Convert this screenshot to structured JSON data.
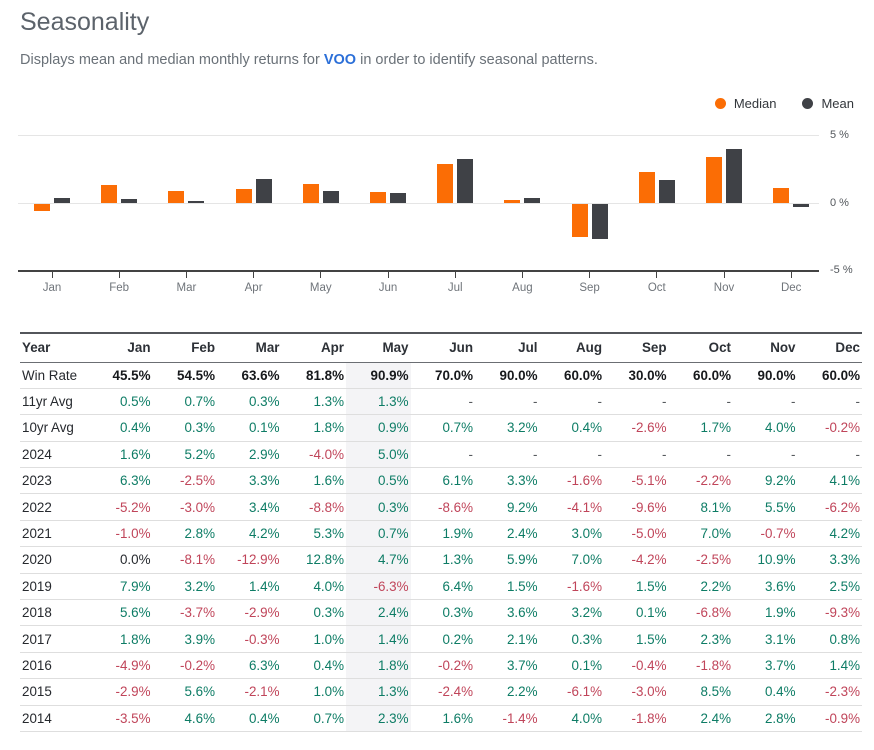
{
  "page": {
    "title": "Seasonality",
    "subtitle_prefix": "Displays mean and median monthly returns for ",
    "ticker": "VOO",
    "subtitle_suffix": " in order to identify seasonal patterns."
  },
  "legend": [
    {
      "label": "Median",
      "color": "#fb6d05"
    },
    {
      "label": "Mean",
      "color": "#3f4146"
    }
  ],
  "chart_data": {
    "type": "bar",
    "title": "",
    "categories": [
      "Jan",
      "Feb",
      "Mar",
      "Apr",
      "May",
      "Jun",
      "Jul",
      "Aug",
      "Sep",
      "Oct",
      "Nov",
      "Dec"
    ],
    "series": [
      {
        "name": "Median",
        "color": "#fb6d05",
        "values": [
          -0.5,
          1.3,
          0.9,
          1.0,
          1.4,
          0.8,
          2.9,
          0.2,
          -2.4,
          2.3,
          3.4,
          1.1
        ]
      },
      {
        "name": "Mean",
        "color": "#3f4146",
        "values": [
          0.4,
          0.3,
          0.1,
          1.8,
          0.9,
          0.7,
          3.2,
          0.4,
          -2.6,
          1.7,
          4.0,
          -0.2
        ]
      }
    ],
    "xlabel": "",
    "ylabel": "",
    "ylim": [
      -5,
      5
    ],
    "ytick_labels": [
      "5 %",
      "0 %",
      "-5 %"
    ],
    "grid": "horizontal",
    "legend_position": "top-right"
  },
  "table": {
    "highlighted_column": "May",
    "columns": [
      "Year",
      "Jan",
      "Feb",
      "Mar",
      "Apr",
      "May",
      "Jun",
      "Jul",
      "Aug",
      "Sep",
      "Oct",
      "Nov",
      "Dec"
    ],
    "rows": [
      {
        "label": "Win Rate",
        "bold": true,
        "values": [
          "45.5%",
          "54.5%",
          "63.6%",
          "81.8%",
          "90.9%",
          "70.0%",
          "90.0%",
          "60.0%",
          "30.0%",
          "60.0%",
          "90.0%",
          "60.0%"
        ]
      },
      {
        "label": "11yr Avg",
        "values": [
          "0.5%",
          "0.7%",
          "0.3%",
          "1.3%",
          "1.3%",
          "-",
          "-",
          "-",
          "-",
          "-",
          "-",
          "-"
        ]
      },
      {
        "label": "10yr Avg",
        "values": [
          "0.4%",
          "0.3%",
          "0.1%",
          "1.8%",
          "0.9%",
          "0.7%",
          "3.2%",
          "0.4%",
          "-2.6%",
          "1.7%",
          "4.0%",
          "-0.2%"
        ]
      },
      {
        "label": "2024",
        "values": [
          "1.6%",
          "5.2%",
          "2.9%",
          "-4.0%",
          "5.0%",
          "-",
          "-",
          "-",
          "-",
          "-",
          "-",
          "-"
        ]
      },
      {
        "label": "2023",
        "values": [
          "6.3%",
          "-2.5%",
          "3.3%",
          "1.6%",
          "0.5%",
          "6.1%",
          "3.3%",
          "-1.6%",
          "-5.1%",
          "-2.2%",
          "9.2%",
          "4.1%"
        ]
      },
      {
        "label": "2022",
        "values": [
          "-5.2%",
          "-3.0%",
          "3.4%",
          "-8.8%",
          "0.3%",
          "-8.6%",
          "9.2%",
          "-4.1%",
          "-9.6%",
          "8.1%",
          "5.5%",
          "-6.2%"
        ]
      },
      {
        "label": "2021",
        "values": [
          "-1.0%",
          "2.8%",
          "4.2%",
          "5.3%",
          "0.7%",
          "1.9%",
          "2.4%",
          "3.0%",
          "-5.0%",
          "7.0%",
          "-0.7%",
          "4.2%"
        ]
      },
      {
        "label": "2020",
        "values": [
          "0.0%",
          "-8.1%",
          "-12.9%",
          "12.8%",
          "4.7%",
          "1.3%",
          "5.9%",
          "7.0%",
          "-4.2%",
          "-2.5%",
          "10.9%",
          "3.3%"
        ]
      },
      {
        "label": "2019",
        "values": [
          "7.9%",
          "3.2%",
          "1.4%",
          "4.0%",
          "-6.3%",
          "6.4%",
          "1.5%",
          "-1.6%",
          "1.5%",
          "2.2%",
          "3.6%",
          "2.5%"
        ]
      },
      {
        "label": "2018",
        "values": [
          "5.6%",
          "-3.7%",
          "-2.9%",
          "0.3%",
          "2.4%",
          "0.3%",
          "3.6%",
          "3.2%",
          "0.1%",
          "-6.8%",
          "1.9%",
          "-9.3%"
        ]
      },
      {
        "label": "2017",
        "values": [
          "1.8%",
          "3.9%",
          "-0.3%",
          "1.0%",
          "1.4%",
          "0.2%",
          "2.1%",
          "0.3%",
          "1.5%",
          "2.3%",
          "3.1%",
          "0.8%"
        ]
      },
      {
        "label": "2016",
        "values": [
          "-4.9%",
          "-0.2%",
          "6.3%",
          "0.4%",
          "1.8%",
          "-0.2%",
          "3.7%",
          "0.1%",
          "-0.4%",
          "-1.8%",
          "3.7%",
          "1.4%"
        ]
      },
      {
        "label": "2015",
        "values": [
          "-2.9%",
          "5.6%",
          "-2.1%",
          "1.0%",
          "1.3%",
          "-2.4%",
          "2.2%",
          "-6.1%",
          "-3.0%",
          "8.5%",
          "0.4%",
          "-2.3%"
        ]
      },
      {
        "label": "2014",
        "values": [
          "-3.5%",
          "4.6%",
          "0.4%",
          "0.7%",
          "2.3%",
          "1.6%",
          "-1.4%",
          "4.0%",
          "-1.8%",
          "2.4%",
          "2.8%",
          "-0.9%"
        ]
      }
    ]
  },
  "colors": {
    "positive": "#0d7c65",
    "negative": "#c0455a",
    "neutral": "#26292e",
    "highlight_column_bg": "#f4f4f6",
    "link_blue": "#2b6fd8",
    "median_orange": "#fb6d05",
    "mean_charcoal": "#3f4146"
  }
}
